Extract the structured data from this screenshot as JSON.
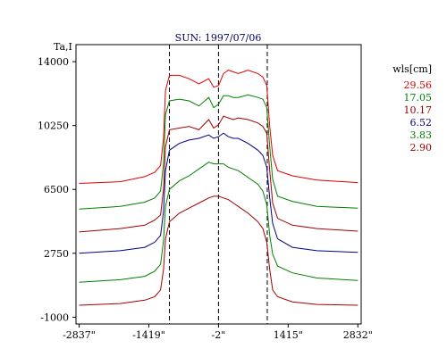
{
  "chart_data": {
    "type": "line",
    "title": "SUN: 1997/07/06",
    "ylabel": "Ta,I",
    "xlabel": "",
    "xlim": [
      -2900,
      2900
    ],
    "ylim": [
      -1400,
      15000
    ],
    "x_ticks": [
      {
        "value": -2837,
        "label": "-2837\""
      },
      {
        "value": -1419,
        "label": "-1419\""
      },
      {
        "value": -2,
        "label": "-2\""
      },
      {
        "value": 1415,
        "label": "1415\""
      },
      {
        "value": 2832,
        "label": "2832\""
      }
    ],
    "y_ticks": [
      {
        "value": 14000,
        "label": "14000"
      },
      {
        "value": 10250,
        "label": "10250"
      },
      {
        "value": 6500,
        "label": "6500"
      },
      {
        "value": 2750,
        "label": "2750"
      },
      {
        "value": -1000,
        "label": "-1000"
      }
    ],
    "vlines": [
      -1000,
      -2,
      990
    ],
    "grid": false,
    "legend": {
      "title": "wls[cm]",
      "placement": "right",
      "entries": [
        {
          "label": "29.56",
          "color": "#e00000"
        },
        {
          "label": "17.05",
          "color": "#008000"
        },
        {
          "label": "10.17",
          "color": "#a00000"
        },
        {
          "label": "6.52",
          "color": "#000080"
        },
        {
          "label": "3.83",
          "color": "#008000"
        },
        {
          "label": "2.90",
          "color": "#a00000"
        }
      ]
    },
    "series": [
      {
        "name": "29.56",
        "color": "#e00000",
        "x": [
          -2837,
          -2000,
          -1500,
          -1300,
          -1180,
          -1120,
          -1080,
          -1000,
          -800,
          -600,
          -400,
          -200,
          -100,
          0,
          100,
          200,
          300,
          400,
          600,
          800,
          900,
          980,
          1040,
          1100,
          1200,
          1500,
          2000,
          2832
        ],
        "y": [
          6850,
          6950,
          7250,
          7500,
          7900,
          9500,
          12300,
          13200,
          13200,
          13000,
          12700,
          13000,
          12500,
          12600,
          13300,
          13500,
          13400,
          13300,
          13500,
          13300,
          13100,
          12600,
          10200,
          8500,
          7600,
          7300,
          7050,
          6900
        ]
      },
      {
        "name": "17.05",
        "color": "#008000",
        "x": [
          -2837,
          -2000,
          -1500,
          -1300,
          -1180,
          -1120,
          -1080,
          -1000,
          -800,
          -600,
          -400,
          -200,
          -100,
          0,
          100,
          200,
          300,
          400,
          600,
          800,
          900,
          980,
          1040,
          1100,
          1200,
          1500,
          2000,
          2832
        ],
        "y": [
          5350,
          5500,
          5750,
          6000,
          6400,
          8000,
          10900,
          11700,
          11800,
          11700,
          11400,
          11900,
          11300,
          11500,
          12000,
          12000,
          11900,
          11900,
          12050,
          11900,
          11800,
          11300,
          9000,
          7100,
          6100,
          5800,
          5500,
          5400
        ]
      },
      {
        "name": "10.17",
        "color": "#a00000",
        "x": [
          -2837,
          -2000,
          -1500,
          -1300,
          -1180,
          -1120,
          -1080,
          -1000,
          -800,
          -600,
          -400,
          -200,
          -100,
          0,
          100,
          200,
          300,
          400,
          600,
          800,
          900,
          980,
          1040,
          1100,
          1200,
          1500,
          2000,
          2832
        ],
        "y": [
          4000,
          4200,
          4400,
          4700,
          5000,
          6500,
          9000,
          10000,
          10100,
          10200,
          10000,
          10600,
          10100,
          10300,
          10800,
          10700,
          10600,
          10700,
          10600,
          10400,
          10200,
          9800,
          7600,
          5700,
          4800,
          4400,
          4200,
          4050
        ]
      },
      {
        "name": "6.52",
        "color": "#000080",
        "x": [
          -2837,
          -2000,
          -1500,
          -1300,
          -1180,
          -1120,
          -1080,
          -1000,
          -800,
          -600,
          -400,
          -200,
          -100,
          0,
          100,
          200,
          300,
          400,
          600,
          800,
          900,
          980,
          1040,
          1100,
          1200,
          1500,
          2000,
          2832
        ],
        "y": [
          2750,
          2900,
          3100,
          3400,
          3800,
          5200,
          7600,
          8800,
          9200,
          9400,
          9500,
          9700,
          9500,
          9600,
          9800,
          9600,
          9500,
          9500,
          9200,
          8800,
          8500,
          7800,
          6000,
          4500,
          3600,
          3100,
          2900,
          2800
        ]
      },
      {
        "name": "3.83",
        "color": "#008000",
        "x": [
          -2837,
          -2000,
          -1500,
          -1300,
          -1180,
          -1120,
          -1080,
          -1000,
          -800,
          -600,
          -400,
          -200,
          -100,
          0,
          100,
          200,
          300,
          400,
          600,
          800,
          900,
          980,
          1040,
          1100,
          1200,
          1500,
          2000,
          2832
        ],
        "y": [
          1050,
          1200,
          1400,
          1700,
          2100,
          3500,
          5500,
          6500,
          7000,
          7300,
          7700,
          8100,
          8000,
          8000,
          8000,
          7800,
          7700,
          7600,
          7200,
          6800,
          6400,
          5600,
          3800,
          2700,
          2000,
          1600,
          1300,
          1150
        ]
      },
      {
        "name": "2.90",
        "color": "#a00000",
        "x": [
          -2837,
          -2000,
          -1500,
          -1300,
          -1180,
          -1120,
          -1080,
          -1000,
          -800,
          -600,
          -400,
          -200,
          -100,
          0,
          100,
          200,
          300,
          400,
          600,
          800,
          900,
          980,
          1040,
          1100,
          1200,
          1500,
          2000,
          2832
        ],
        "y": [
          -300,
          -200,
          0,
          200,
          600,
          1800,
          3600,
          4600,
          5100,
          5400,
          5700,
          6000,
          6100,
          6100,
          6000,
          5900,
          5700,
          5500,
          5100,
          4600,
          4200,
          3400,
          1800,
          600,
          200,
          -100,
          -250,
          -300
        ]
      }
    ]
  }
}
